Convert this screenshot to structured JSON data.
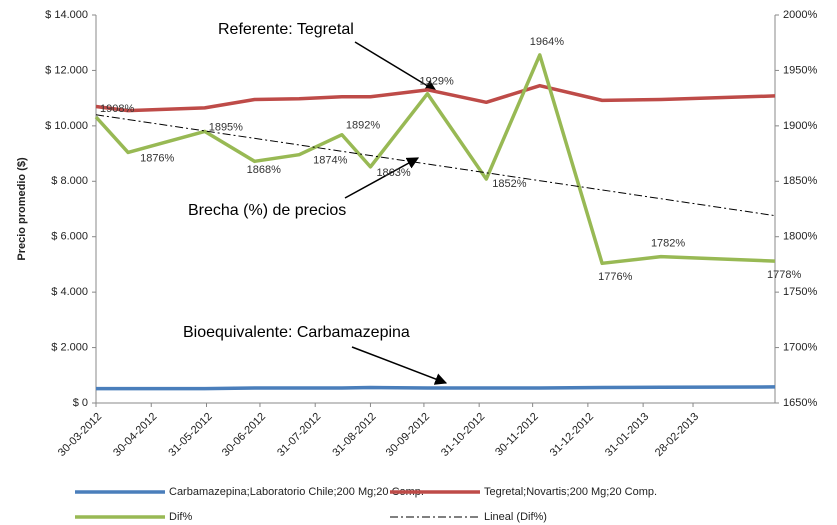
{
  "chart_data": {
    "type": "line",
    "y_label": "Precio promedio ($)",
    "xlim": [
      "2012-03-30",
      "2013-04-15"
    ],
    "xticks": [
      {
        "value": "2012-03-30",
        "label": "30-03-2012"
      },
      {
        "value": "2012-04-30",
        "label": "30-04-2012"
      },
      {
        "value": "2012-05-31",
        "label": "31-05-2012"
      },
      {
        "value": "2012-06-30",
        "label": "30-06-2012"
      },
      {
        "value": "2012-07-31",
        "label": "31-07-2012"
      },
      {
        "value": "2012-08-31",
        "label": "31-08-2012"
      },
      {
        "value": "2012-09-30",
        "label": "30-09-2012"
      },
      {
        "value": "2012-10-31",
        "label": "31-10-2012"
      },
      {
        "value": "2012-11-30",
        "label": "30-11-2012"
      },
      {
        "value": "2012-12-31",
        "label": "31-12-2012"
      },
      {
        "value": "2013-01-31",
        "label": "31-01-2013"
      },
      {
        "value": "2013-02-28",
        "label": "28-02-2013"
      }
    ],
    "ylim": [
      0,
      14000
    ],
    "yticks": [
      {
        "value": 0,
        "label": "$ 0"
      },
      {
        "value": 2000,
        "label": "$ 2.000"
      },
      {
        "value": 4000,
        "label": "$ 4.000"
      },
      {
        "value": 6000,
        "label": "$ 6.000"
      },
      {
        "value": 8000,
        "label": "$ 8.000"
      },
      {
        "value": 10000,
        "label": "$ 10.000"
      },
      {
        "value": 12000,
        "label": "$ 12.000"
      },
      {
        "value": 14000,
        "label": "$ 14.000"
      }
    ],
    "y2lim": [
      1650,
      2000
    ],
    "y2ticks": [
      {
        "value": 1650,
        "label": "1650%"
      },
      {
        "value": 1700,
        "label": "1700%"
      },
      {
        "value": 1750,
        "label": "1750%"
      },
      {
        "value": 1800,
        "label": "1800%"
      },
      {
        "value": 1850,
        "label": "1850%"
      },
      {
        "value": 1900,
        "label": "1900%"
      },
      {
        "value": 1950,
        "label": "1950%"
      },
      {
        "value": 2000,
        "label": "2000%"
      }
    ],
    "legend": "bottom",
    "series": [
      {
        "name": "Carbamazepina;Laboratorio Chile;200 Mg;20 Comp.",
        "color": "#4a7ebb",
        "x": [
          "2012-03-30",
          "2012-04-17",
          "2012-05-30",
          "2012-06-27",
          "2012-07-22",
          "2012-08-15",
          "2012-08-31",
          "2012-10-02",
          "2012-11-04",
          "2012-12-04",
          "2013-01-08",
          "2013-02-10",
          "2013-04-15"
        ],
        "values": [
          520,
          520,
          520,
          540,
          540,
          540,
          560,
          540,
          540,
          540,
          560,
          570,
          580
        ]
      },
      {
        "name": "Tegretal;Novartis;200 Mg;20 Comp.",
        "color": "#be4b48",
        "x": [
          "2012-03-30",
          "2012-04-17",
          "2012-05-30",
          "2012-06-27",
          "2012-07-22",
          "2012-08-15",
          "2012-08-31",
          "2012-10-02",
          "2012-11-04",
          "2012-12-04",
          "2013-01-08",
          "2013-02-10",
          "2013-04-15"
        ],
        "values": [
          10700,
          10550,
          10650,
          10950,
          10980,
          11050,
          11050,
          11300,
          10850,
          11450,
          10920,
          10950,
          11080
        ]
      },
      {
        "name": "Dif%",
        "color": "#98b954",
        "axis": "y2",
        "x": [
          "2012-03-30",
          "2012-04-17",
          "2012-05-30",
          "2012-06-27",
          "2012-07-22",
          "2012-08-15",
          "2012-08-31",
          "2012-10-02",
          "2012-11-04",
          "2012-12-04",
          "2013-01-08",
          "2013-02-10",
          "2013-04-15"
        ],
        "values": [
          1908,
          1876,
          1895,
          1868,
          1874,
          1892,
          1863,
          1929,
          1852,
          1964,
          1776,
          1782,
          1778
        ],
        "value_labels": [
          "1908%",
          "1876%",
          "1895%",
          "1868%",
          "1874%",
          "1892%",
          "1863%",
          "1929%",
          "1852%",
          "1964%",
          "1776%",
          "1782%",
          "1778%"
        ]
      },
      {
        "name": "Lineal (Dif%)",
        "color": "#000000",
        "axis": "y2",
        "dash": "8 3 2 3",
        "x": [
          "2012-03-30",
          "2013-04-15"
        ],
        "values": [
          1910,
          1819
        ]
      }
    ],
    "annotations": [
      "Referente: Tegretal",
      "Brecha (%) de precios",
      "Bioequivalente: Carbamazepina"
    ]
  }
}
